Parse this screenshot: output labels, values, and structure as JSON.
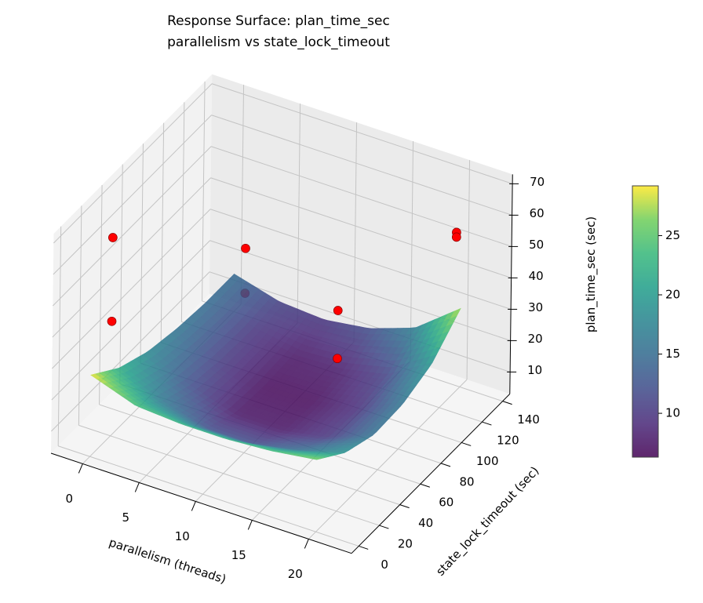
{
  "chart_data": {
    "type": "surface3d",
    "title": "Response Surface: plan_time_sec",
    "subtitle": "parallelism vs state_lock_timeout",
    "xlabel": "parallelism (threads)",
    "ylabel": "state_lock_timeout (sec)",
    "zlabel": "plan_time_sec (sec)",
    "xlim": [
      -2.8,
      23.8
    ],
    "ylim": [
      -7,
      147
    ],
    "zlim": [
      3,
      73
    ],
    "xticks": [
      0,
      5,
      10,
      15,
      20
    ],
    "yticks": [
      0,
      20,
      40,
      60,
      80,
      100,
      120,
      140
    ],
    "zticks": [
      10,
      20,
      30,
      40,
      50,
      60,
      70
    ],
    "grid": true,
    "colormap": "viridis",
    "surface": {
      "x": [
        0,
        4,
        8,
        12,
        16,
        20
      ],
      "y": [
        0,
        28,
        56,
        84,
        112,
        140
      ],
      "z": [
        [
          29,
          22,
          18,
          16,
          15,
          15
        ],
        [
          24,
          16,
          12,
          10.5,
          10,
          11
        ],
        [
          23,
          12,
          7.5,
          6.8,
          7.5,
          10
        ],
        [
          23,
          12,
          7.5,
          6.8,
          8,
          12
        ],
        [
          24,
          15,
          10,
          9.5,
          11,
          17
        ],
        [
          26,
          19,
          15.5,
          16,
          19.5,
          28
        ]
      ]
    },
    "points": [
      {
        "x": 0,
        "y": 20,
        "z": 66.2
      },
      {
        "x": 0,
        "y": 20,
        "z": 39.5
      },
      {
        "x": 5,
        "y": 95,
        "z": 44
      },
      {
        "x": 5,
        "y": 95,
        "z": 29.7
      },
      {
        "x": 15,
        "y": 75,
        "z": 42.8
      },
      {
        "x": 15,
        "y": 75,
        "z": 27.5
      },
      {
        "x": 20,
        "y": 135,
        "z": 53.9
      },
      {
        "x": 20,
        "y": 135,
        "z": 52.4
      }
    ],
    "point_color": "#ff0000",
    "colorbar": {
      "vmin": 6.3,
      "vmax": 29.2,
      "ticks": [
        10,
        15,
        20,
        25
      ]
    }
  }
}
